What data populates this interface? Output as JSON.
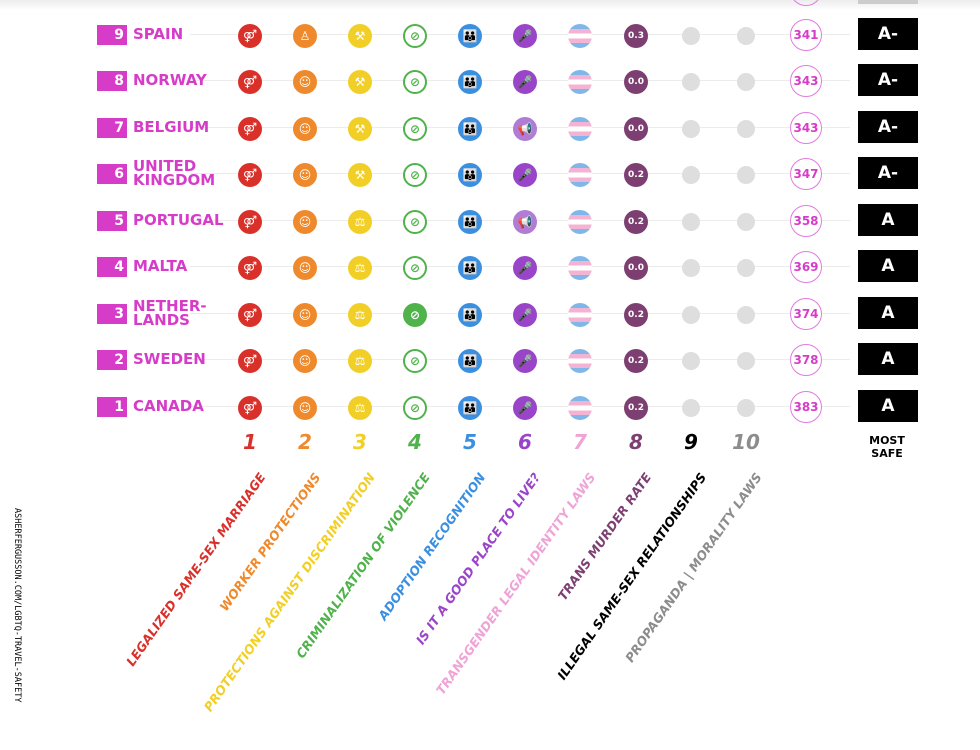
{
  "colors": {
    "brand_pink": "#d63cc8",
    "c1": "#d9302a",
    "c2": "#ef8a2c",
    "c3": "#f2cf27",
    "c4": "#4fb24a",
    "c5": "#3b8fe0",
    "c6": "#9a44c9",
    "c7": "#f0a3d6",
    "c8": "#7d3f72",
    "c9": "#000000",
    "c10": "#8c8c8c"
  },
  "rows": [
    {
      "rank": "9",
      "country": "SPAIN",
      "icons": [
        "marriage-icon",
        "person-icon",
        "gavel-icon",
        "no-hate-icon",
        "family-icon",
        "microphone-icon",
        "trans-flag-icon"
      ],
      "murder_rate": "0.3",
      "score": "341",
      "grade": "A-"
    },
    {
      "rank": "8",
      "country": "NORWAY",
      "icons": [
        "marriage-icon",
        "group-icon",
        "gavel-icon",
        "no-hate-icon",
        "family-icon",
        "microphone-icon",
        "trans-flag-icon"
      ],
      "murder_rate": "0.0",
      "score": "343",
      "grade": "A-"
    },
    {
      "rank": "7",
      "country": "BELGIUM",
      "icons": [
        "marriage-icon",
        "group-icon",
        "gavel-icon",
        "no-hate-icon",
        "family-icon",
        "megaphone-icon",
        "trans-flag-icon"
      ],
      "murder_rate": "0.0",
      "score": "343",
      "grade": "A-"
    },
    {
      "rank": "6",
      "country": "UNITED\nKINGDOM",
      "icons": [
        "marriage-icon",
        "group-icon",
        "gavel-icon",
        "no-hate-icon",
        "family-icon",
        "microphone-icon",
        "trans-flag-icon"
      ],
      "murder_rate": "0.2",
      "score": "347",
      "grade": "A-"
    },
    {
      "rank": "5",
      "country": "PORTUGAL",
      "icons": [
        "marriage-icon",
        "group-icon",
        "scales-icon",
        "no-hate-icon",
        "family-icon",
        "megaphone-icon",
        "trans-flag-icon"
      ],
      "murder_rate": "0.2",
      "score": "358",
      "grade": "A"
    },
    {
      "rank": "4",
      "country": "MALTA",
      "icons": [
        "marriage-icon",
        "group-icon",
        "scales-icon",
        "no-hate-icon",
        "family-icon",
        "microphone-icon",
        "trans-flag-icon"
      ],
      "murder_rate": "0.0",
      "score": "369",
      "grade": "A"
    },
    {
      "rank": "3",
      "country": "NETHER-\nLANDS",
      "icons": [
        "marriage-icon",
        "group-icon",
        "scales-icon",
        "no-hate-filled-icon",
        "family-icon",
        "microphone-icon",
        "trans-flag-icon"
      ],
      "murder_rate": "0.2",
      "score": "374",
      "grade": "A"
    },
    {
      "rank": "2",
      "country": "SWEDEN",
      "icons": [
        "marriage-icon",
        "group-icon",
        "scales-icon",
        "no-hate-icon",
        "family-icon",
        "microphone-icon",
        "trans-flag-icon"
      ],
      "murder_rate": "0.2",
      "score": "378",
      "grade": "A"
    },
    {
      "rank": "1",
      "country": "CANADA",
      "icons": [
        "marriage-icon",
        "group-icon",
        "scales-icon",
        "no-hate-icon",
        "family-icon",
        "microphone-icon",
        "trans-flag-icon"
      ],
      "murder_rate": "0.2",
      "score": "383",
      "grade": "A"
    }
  ],
  "categories": [
    {
      "num": "1",
      "label": "LEGALIZED SAME-SEX MARRIAGE"
    },
    {
      "num": "2",
      "label": "WORKER PROTECTIONS"
    },
    {
      "num": "3",
      "label": "PROTECTIONS AGAINST DISCRIMINATION"
    },
    {
      "num": "4",
      "label": "CRIMINALIZATION OF VIOLENCE"
    },
    {
      "num": "5",
      "label": "ADOPTION RECOGNITION"
    },
    {
      "num": "6",
      "label": "IS IT A GOOD PLACE TO LIVE?"
    },
    {
      "num": "7",
      "label": "TRANSGENDER LEGAL IDENTITY LAWS"
    },
    {
      "num": "8",
      "label": "TRANS MURDER RATE"
    },
    {
      "num": "9",
      "label": "ILLEGAL SAME-SEX RELATIONSHIPS"
    },
    {
      "num": "10",
      "label": "PROPAGANDA | MORALITY LAWS"
    }
  ],
  "grade_header": "MOST\nSAFE",
  "watermark": "ASHERFERGUSSON.COM/LGBTQ-TRAVEL-SAFETY"
}
